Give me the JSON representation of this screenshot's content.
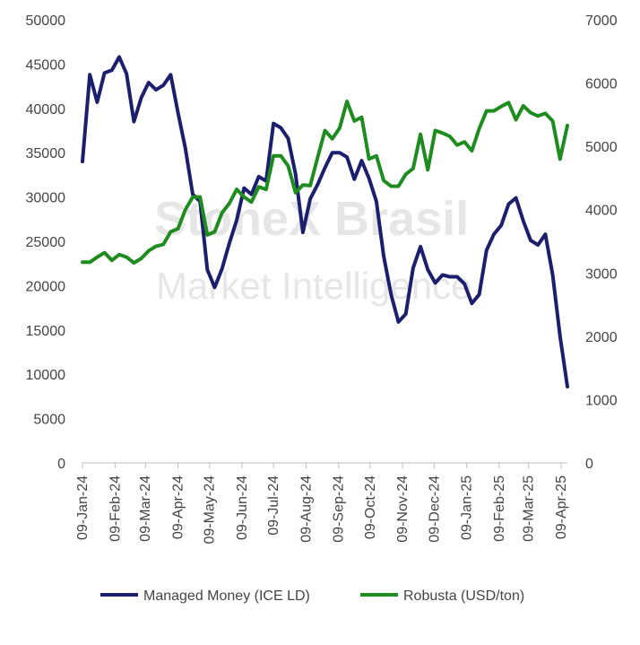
{
  "chart_data": {
    "type": "line",
    "x": [
      "09-Jan-24",
      "16-Jan-24",
      "23-Jan-24",
      "30-Jan-24",
      "06-Feb-24",
      "13-Feb-24",
      "20-Feb-24",
      "27-Feb-24",
      "05-Mar-24",
      "12-Mar-24",
      "19-Mar-24",
      "26-Mar-24",
      "02-Apr-24",
      "09-Apr-24",
      "16-Apr-24",
      "23-Apr-24",
      "30-Apr-24",
      "07-May-24",
      "14-May-24",
      "21-May-24",
      "28-May-24",
      "04-Jun-24",
      "11-Jun-24",
      "18-Jun-24",
      "25-Jun-24",
      "02-Jul-24",
      "09-Jul-24",
      "16-Jul-24",
      "23-Jul-24",
      "30-Jul-24",
      "06-Aug-24",
      "13-Aug-24",
      "20-Aug-24",
      "27-Aug-24",
      "03-Sep-24",
      "10-Sep-24",
      "17-Sep-24",
      "24-Sep-24",
      "01-Oct-24",
      "08-Oct-24",
      "15-Oct-24",
      "22-Oct-24",
      "29-Oct-24",
      "05-Nov-24",
      "12-Nov-24",
      "19-Nov-24",
      "26-Nov-24",
      "03-Dec-24",
      "10-Dec-24",
      "17-Dec-24",
      "24-Dec-24",
      "31-Dec-24",
      "07-Jan-25",
      "14-Jan-25",
      "21-Jan-25",
      "28-Jan-25",
      "04-Feb-25",
      "11-Feb-25",
      "18-Feb-25",
      "25-Feb-25",
      "04-Mar-25",
      "11-Mar-25",
      "18-Mar-25",
      "25-Mar-25",
      "01-Apr-25",
      "08-Apr-25",
      "15-Apr-25"
    ],
    "x_ticks": [
      "09-Jan-24",
      "09-Feb-24",
      "09-Mar-24",
      "09-Apr-24",
      "09-May-24",
      "09-Jun-24",
      "09-Jul-24",
      "09-Aug-24",
      "09-Sep-24",
      "09-Oct-24",
      "09-Nov-24",
      "09-Dec-24",
      "09-Jan-25",
      "09-Feb-25",
      "09-Mar-25",
      "09-Apr-25"
    ],
    "x_tick_index": [
      0,
      4.43,
      8.57,
      13,
      17.29,
      21.71,
      26,
      30.43,
      34.86,
      39.14,
      43.57,
      47.86,
      52.29,
      56.71,
      60.71,
      65.14
    ],
    "left_axis": {
      "ylim": [
        0,
        50000
      ],
      "ticks": [
        "0",
        "5000",
        "10000",
        "15000",
        "20000",
        "25000",
        "30000",
        "35000",
        "40000",
        "45000",
        "50000"
      ]
    },
    "right_axis": {
      "ylim": [
        0,
        7000
      ],
      "ticks": [
        "0",
        "1000",
        "2000",
        "3000",
        "4000",
        "5000",
        "6000",
        "7000"
      ]
    },
    "grid": false,
    "legend_position": "bottom",
    "series": [
      {
        "name": "Managed Money (ICE LD)",
        "axis": "left",
        "color": "#1b1f6e",
        "values": [
          34000,
          43800,
          40700,
          44000,
          44300,
          45800,
          43900,
          38500,
          41200,
          42900,
          42100,
          42600,
          43800,
          39500,
          35500,
          30300,
          29500,
          21800,
          19800,
          21900,
          24800,
          27400,
          31000,
          30300,
          32300,
          31800,
          38300,
          37800,
          36600,
          32600,
          26000,
          29800,
          31400,
          33300,
          35000,
          35000,
          34500,
          32000,
          34100,
          32100,
          29500,
          23300,
          19000,
          15900,
          16800,
          22000,
          24400,
          21800,
          20300,
          21200,
          21000,
          21000,
          20200,
          18000,
          19000,
          24000,
          25800,
          26800,
          29200,
          29900,
          27300,
          25100,
          24600,
          25800,
          21200,
          14300,
          8600
        ]
      },
      {
        "name": "Robusta (USD/ton)",
        "axis": "right",
        "color": "#1e8c1e",
        "values": [
          3170,
          3170,
          3250,
          3320,
          3200,
          3290,
          3250,
          3160,
          3230,
          3350,
          3420,
          3450,
          3650,
          3700,
          4000,
          4200,
          4200,
          3600,
          3650,
          3950,
          4100,
          4320,
          4200,
          4120,
          4360,
          4320,
          4850,
          4850,
          4690,
          4270,
          4390,
          4380,
          4820,
          5250,
          5120,
          5290,
          5710,
          5400,
          5460,
          4800,
          4850,
          4460,
          4370,
          4370,
          4560,
          4650,
          5190,
          4630,
          5250,
          5210,
          5160,
          5020,
          5070,
          4930,
          5280,
          5560,
          5560,
          5630,
          5690,
          5420,
          5640,
          5530,
          5480,
          5520,
          5400,
          4800,
          5330
        ]
      }
    ]
  },
  "watermark": {
    "brand": "StoneX Brasil",
    "tagline": "Market Intelligence"
  }
}
